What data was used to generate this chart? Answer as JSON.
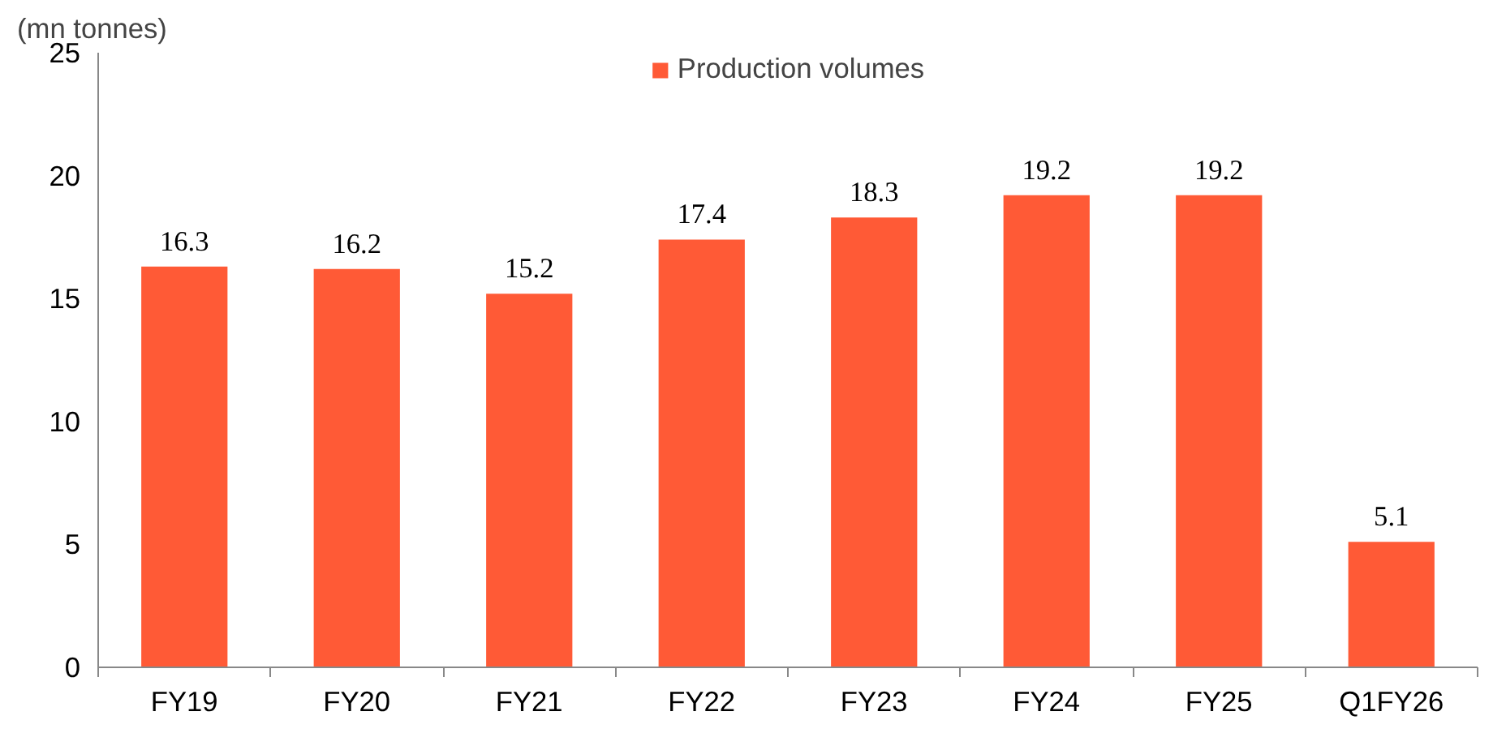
{
  "chart_data": {
    "type": "bar",
    "ylabel": "(mn tonnes)",
    "categories": [
      "FY19",
      "FY20",
      "FY21",
      "FY22",
      "FY23",
      "FY24",
      "FY25",
      "Q1FY26"
    ],
    "series": [
      {
        "name": "Production volumes",
        "color": "#ff5a36",
        "values": [
          16.3,
          16.2,
          15.2,
          17.4,
          18.3,
          19.2,
          19.2,
          5.1
        ]
      }
    ],
    "ylim": [
      0,
      25
    ],
    "yticks": [
      0,
      5,
      10,
      15,
      20,
      25
    ],
    "grid": false,
    "legend": "top",
    "data_labels": true
  }
}
